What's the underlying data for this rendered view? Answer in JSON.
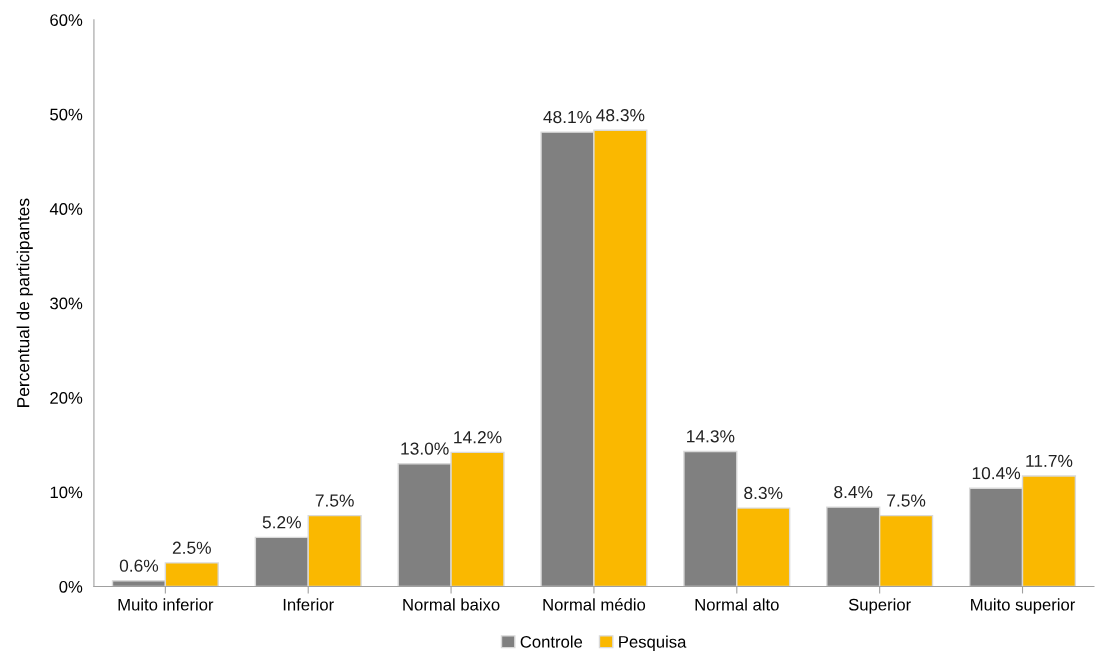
{
  "chart_data": {
    "type": "bar",
    "ylabel": "Percentual de participantes",
    "categories": [
      "Muito inferior",
      "Inferior",
      "Normal baixo",
      "Normal médio",
      "Normal alto",
      "Superior",
      "Muito superior"
    ],
    "series": [
      {
        "name": "Controle",
        "color": "#808080",
        "values": [
          0.6,
          5.2,
          13.0,
          48.1,
          14.3,
          8.4,
          10.4
        ],
        "value_labels": [
          "0.6%",
          "5.2%",
          "13.0%",
          "48.1%",
          "14.3%",
          "8.4%",
          "10.4%"
        ]
      },
      {
        "name": "Pesquisa",
        "color": "#fab800",
        "values": [
          2.5,
          7.5,
          14.2,
          48.3,
          8.3,
          7.5,
          11.7
        ],
        "value_labels": [
          "2.5%",
          "7.5%",
          "14.2%",
          "48.3%",
          "8.3%",
          "7.5%",
          "11.7%"
        ]
      }
    ],
    "ylim": [
      0,
      60
    ],
    "yticks": [
      {
        "value": 0,
        "label": "0%"
      },
      {
        "value": 10,
        "label": "10%"
      },
      {
        "value": 20,
        "label": "20%"
      },
      {
        "value": 30,
        "label": "30%"
      },
      {
        "value": 40,
        "label": "40%"
      },
      {
        "value": 50,
        "label": "50%"
      },
      {
        "value": 60,
        "label": "60%"
      }
    ],
    "grid": false,
    "legend": "bottom"
  }
}
